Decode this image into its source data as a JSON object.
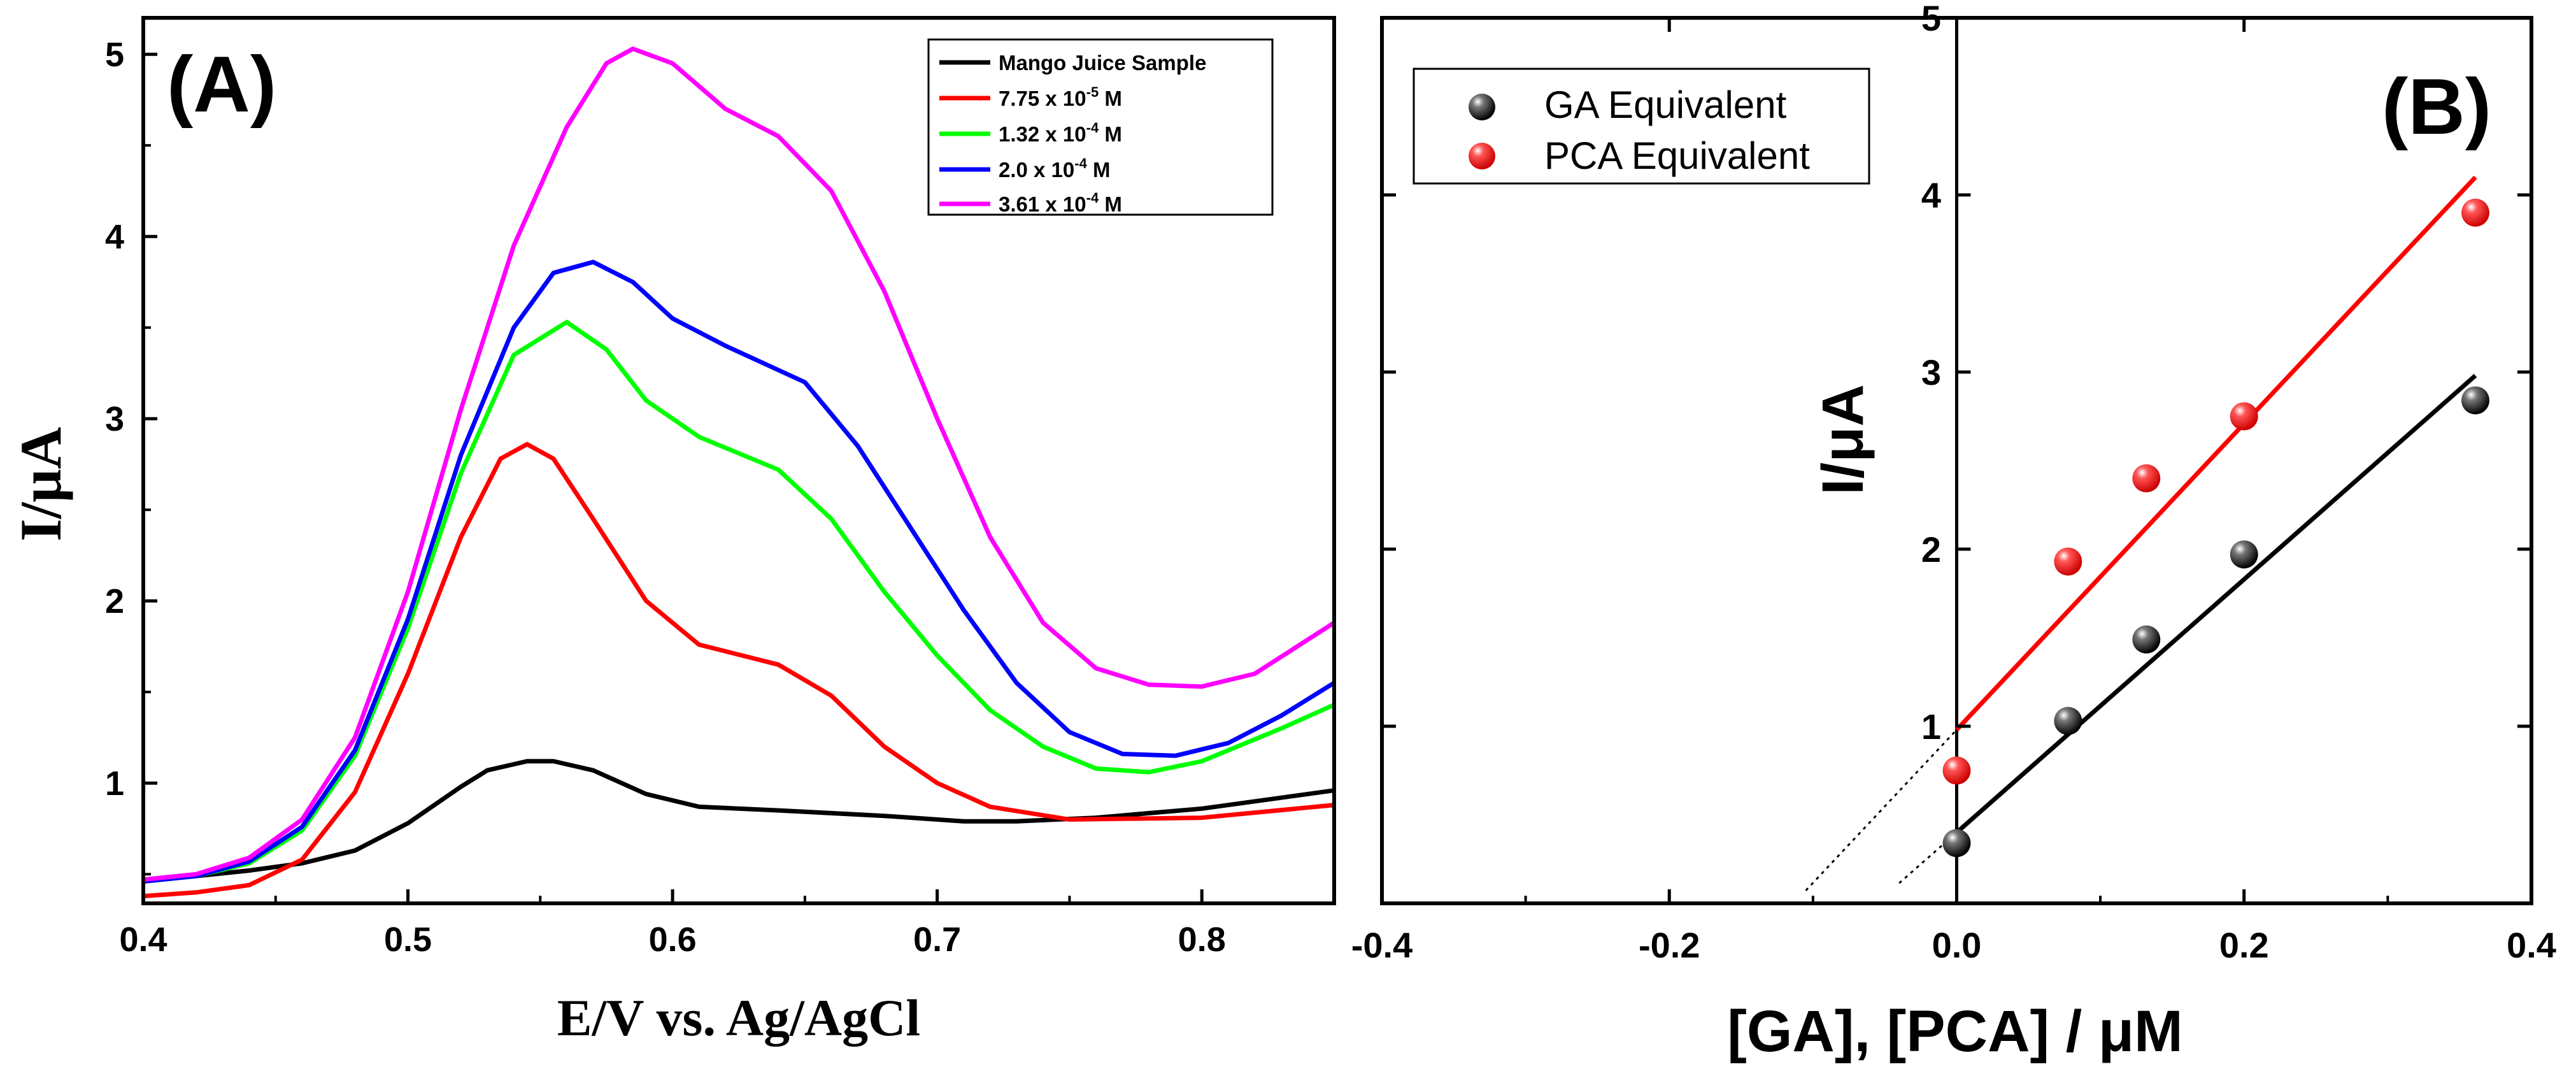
{
  "chart_data": [
    {
      "type": "line",
      "panel_label": "(A)",
      "xlabel": "E/V vs. Ag/AgCl",
      "ylabel": "I/μA",
      "xlim": [
        0.4,
        0.85
      ],
      "ylim": [
        0.34,
        5.2
      ],
      "x_ticks": [
        "0.4",
        "0.5",
        "0.6",
        "0.7",
        "0.8"
      ],
      "y_ticks": [
        "1",
        "2",
        "3",
        "4",
        "5"
      ],
      "legend": {
        "placement": "top-right"
      },
      "series": [
        {
          "name": "Mango Juice Sample",
          "legend_main": "Mango Juice Sample",
          "legend_exp": "",
          "legend_tail": "",
          "color": "#000000",
          "points": [
            [
              0.4,
              0.47
            ],
            [
              0.42,
              0.49
            ],
            [
              0.44,
              0.52
            ],
            [
              0.46,
              0.56
            ],
            [
              0.48,
              0.63
            ],
            [
              0.5,
              0.78
            ],
            [
              0.52,
              0.98
            ],
            [
              0.53,
              1.07
            ],
            [
              0.545,
              1.12
            ],
            [
              0.555,
              1.12
            ],
            [
              0.57,
              1.07
            ],
            [
              0.59,
              0.94
            ],
            [
              0.61,
              0.87
            ],
            [
              0.64,
              0.85
            ],
            [
              0.68,
              0.82
            ],
            [
              0.71,
              0.79
            ],
            [
              0.73,
              0.79
            ],
            [
              0.76,
              0.81
            ],
            [
              0.8,
              0.86
            ],
            [
              0.85,
              0.96
            ]
          ]
        },
        {
          "name": "7.75 x 10-5 M",
          "legend_main": "7.75 x 10",
          "legend_exp": "-5",
          "legend_tail": " M",
          "color": "#ff0000",
          "points": [
            [
              0.4,
              0.38
            ],
            [
              0.42,
              0.4
            ],
            [
              0.44,
              0.44
            ],
            [
              0.46,
              0.58
            ],
            [
              0.48,
              0.95
            ],
            [
              0.5,
              1.6
            ],
            [
              0.52,
              2.35
            ],
            [
              0.535,
              2.78
            ],
            [
              0.545,
              2.86
            ],
            [
              0.555,
              2.78
            ],
            [
              0.57,
              2.45
            ],
            [
              0.59,
              2.0
            ],
            [
              0.61,
              1.76
            ],
            [
              0.64,
              1.65
            ],
            [
              0.66,
              1.48
            ],
            [
              0.68,
              1.2
            ],
            [
              0.7,
              1.0
            ],
            [
              0.72,
              0.87
            ],
            [
              0.75,
              0.8
            ],
            [
              0.8,
              0.81
            ],
            [
              0.85,
              0.88
            ]
          ]
        },
        {
          "name": "1.32 x 10-4 M",
          "legend_main": "1.32 x 10",
          "legend_exp": "-4",
          "legend_tail": " M",
          "color": "#00ff00",
          "points": [
            [
              0.4,
              0.46
            ],
            [
              0.42,
              0.49
            ],
            [
              0.44,
              0.56
            ],
            [
              0.46,
              0.74
            ],
            [
              0.48,
              1.15
            ],
            [
              0.5,
              1.85
            ],
            [
              0.52,
              2.7
            ],
            [
              0.54,
              3.35
            ],
            [
              0.56,
              3.53
            ],
            [
              0.575,
              3.38
            ],
            [
              0.59,
              3.1
            ],
            [
              0.61,
              2.9
            ],
            [
              0.64,
              2.72
            ],
            [
              0.66,
              2.45
            ],
            [
              0.68,
              2.05
            ],
            [
              0.7,
              1.7
            ],
            [
              0.72,
              1.4
            ],
            [
              0.74,
              1.2
            ],
            [
              0.76,
              1.08
            ],
            [
              0.78,
              1.06
            ],
            [
              0.8,
              1.12
            ],
            [
              0.83,
              1.3
            ],
            [
              0.85,
              1.43
            ]
          ]
        },
        {
          "name": "2.0 x 10-4 M",
          "legend_main": "2.0 x 10",
          "legend_exp": "-4",
          "legend_tail": "  M",
          "color": "#0000ff",
          "points": [
            [
              0.4,
              0.46
            ],
            [
              0.42,
              0.49
            ],
            [
              0.44,
              0.57
            ],
            [
              0.46,
              0.76
            ],
            [
              0.48,
              1.18
            ],
            [
              0.5,
              1.9
            ],
            [
              0.52,
              2.8
            ],
            [
              0.54,
              3.5
            ],
            [
              0.555,
              3.8
            ],
            [
              0.57,
              3.86
            ],
            [
              0.585,
              3.75
            ],
            [
              0.6,
              3.55
            ],
            [
              0.62,
              3.4
            ],
            [
              0.65,
              3.2
            ],
            [
              0.67,
              2.85
            ],
            [
              0.69,
              2.4
            ],
            [
              0.71,
              1.95
            ],
            [
              0.73,
              1.55
            ],
            [
              0.75,
              1.28
            ],
            [
              0.77,
              1.16
            ],
            [
              0.79,
              1.15
            ],
            [
              0.81,
              1.22
            ],
            [
              0.83,
              1.37
            ],
            [
              0.85,
              1.55
            ]
          ]
        },
        {
          "name": "3.61 x 10-4 M",
          "legend_main": "3.61 x 10",
          "legend_exp": "-4",
          "legend_tail": " M",
          "color": "#ff00ff",
          "points": [
            [
              0.4,
              0.47
            ],
            [
              0.42,
              0.5
            ],
            [
              0.44,
              0.59
            ],
            [
              0.46,
              0.8
            ],
            [
              0.48,
              1.25
            ],
            [
              0.5,
              2.05
            ],
            [
              0.52,
              3.05
            ],
            [
              0.54,
              3.95
            ],
            [
              0.56,
              4.6
            ],
            [
              0.575,
              4.95
            ],
            [
              0.585,
              5.03
            ],
            [
              0.6,
              4.95
            ],
            [
              0.62,
              4.7
            ],
            [
              0.64,
              4.55
            ],
            [
              0.66,
              4.25
            ],
            [
              0.68,
              3.7
            ],
            [
              0.7,
              3.0
            ],
            [
              0.72,
              2.35
            ],
            [
              0.74,
              1.88
            ],
            [
              0.76,
              1.63
            ],
            [
              0.78,
              1.54
            ],
            [
              0.8,
              1.53
            ],
            [
              0.82,
              1.6
            ],
            [
              0.85,
              1.88
            ]
          ]
        }
      ]
    },
    {
      "type": "scatter",
      "panel_label": "(B)",
      "xlabel": "[GA], [PCA] / μM",
      "ylabel": "I/μA",
      "xlim": [
        -0.4,
        0.4
      ],
      "ylim": [
        0.0,
        5.0
      ],
      "x_ticks": [
        "-0.4",
        "-0.2",
        "0.0",
        "0.2",
        "0.4"
      ],
      "y_ticks": [
        "1",
        "2",
        "3",
        "4",
        "5"
      ],
      "legend": {
        "placement": "top-left"
      },
      "series": [
        {
          "name": "GA Equivalent",
          "color": "#000000",
          "x": [
            0.0,
            0.0775,
            0.132,
            0.2,
            0.361
          ],
          "y": [
            0.34,
            1.03,
            1.49,
            1.97,
            2.84
          ],
          "fit": {
            "x": [
              0.0,
              0.361
            ],
            "y": [
              0.4,
              2.98
            ],
            "extrapolate_to_x": -0.04
          }
        },
        {
          "name": "PCA Equivalent",
          "color": "#ff0000",
          "x": [
            0.0,
            0.0775,
            0.132,
            0.2,
            0.361
          ],
          "y": [
            0.75,
            1.93,
            2.4,
            2.75,
            3.9
          ],
          "fit": {
            "x": [
              0.0,
              0.361
            ],
            "y": [
              0.98,
              4.1
            ],
            "extrapolate_to_x": -0.105
          }
        }
      ]
    }
  ]
}
